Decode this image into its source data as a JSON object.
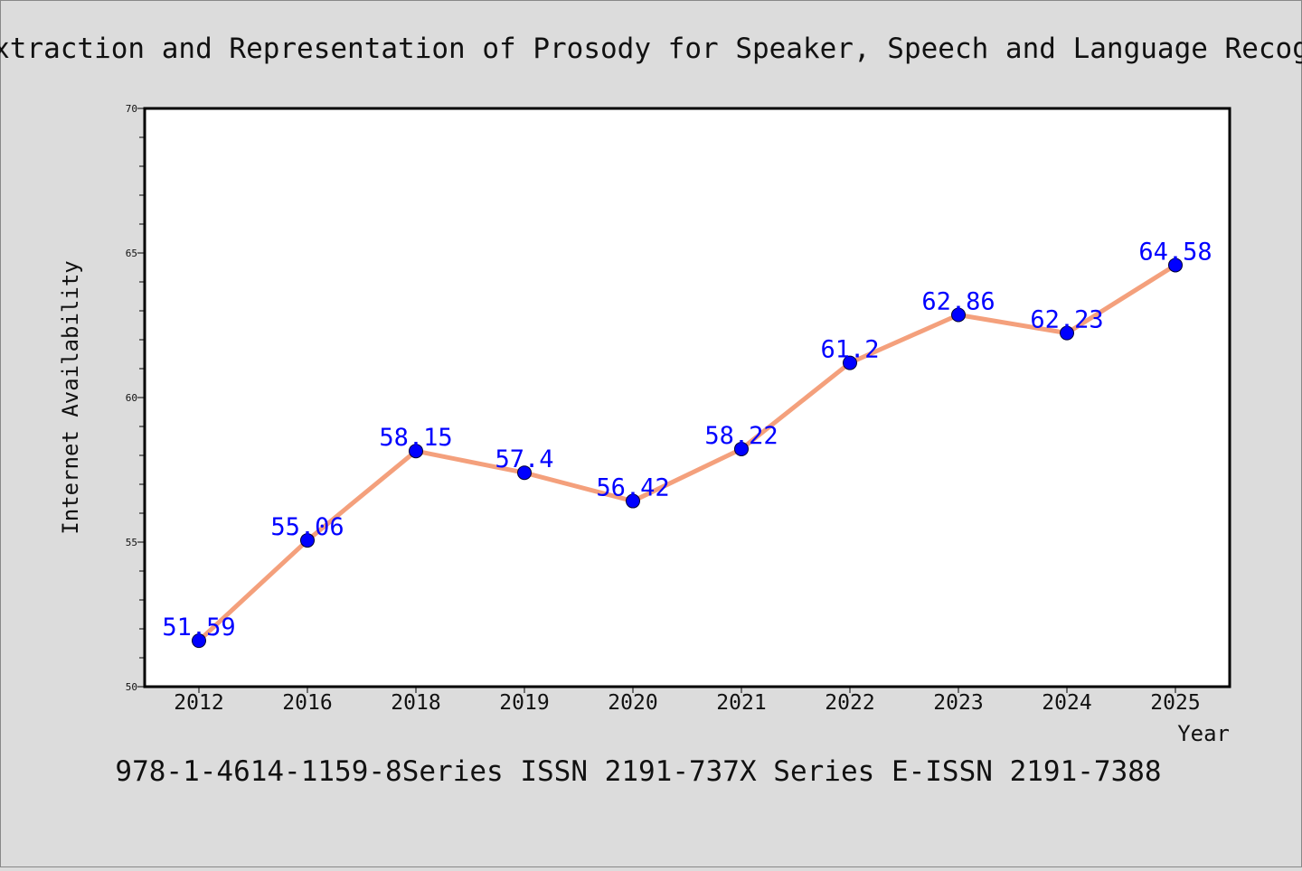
{
  "chart_data": {
    "type": "line",
    "title": "Extraction and Representation of Prosody for Speaker, Speech and Language Recogn",
    "xlabel": "Year",
    "ylabel": "Internet Availability",
    "caption": "978-1-4614-1159-8Series ISSN 2191-737X Series E-ISSN 2191-7388",
    "categories": [
      "2012",
      "2016",
      "2018",
      "2019",
      "2020",
      "2021",
      "2022",
      "2023",
      "2024",
      "2025"
    ],
    "series": [
      {
        "values": [
          51.59,
          55.06,
          58.15,
          57.4,
          56.42,
          58.22,
          61.2,
          62.86,
          62.23,
          64.58
        ]
      }
    ],
    "data_labels": [
      "51.59",
      "55.06",
      "58.15",
      "57.4",
      "56.42",
      "58.22",
      "61.2",
      "62.86",
      "62.23",
      "64.58"
    ],
    "ylim": [
      50,
      70
    ],
    "yticks": [
      "50",
      "55",
      "60",
      "65",
      "70"
    ],
    "grid": false,
    "colors": {
      "background": "#dcdcdc",
      "plot_background": "#ffffff",
      "line": "#f4a07c",
      "marker": "#0000ff",
      "label": "#0000ff",
      "text": "#111111"
    }
  }
}
